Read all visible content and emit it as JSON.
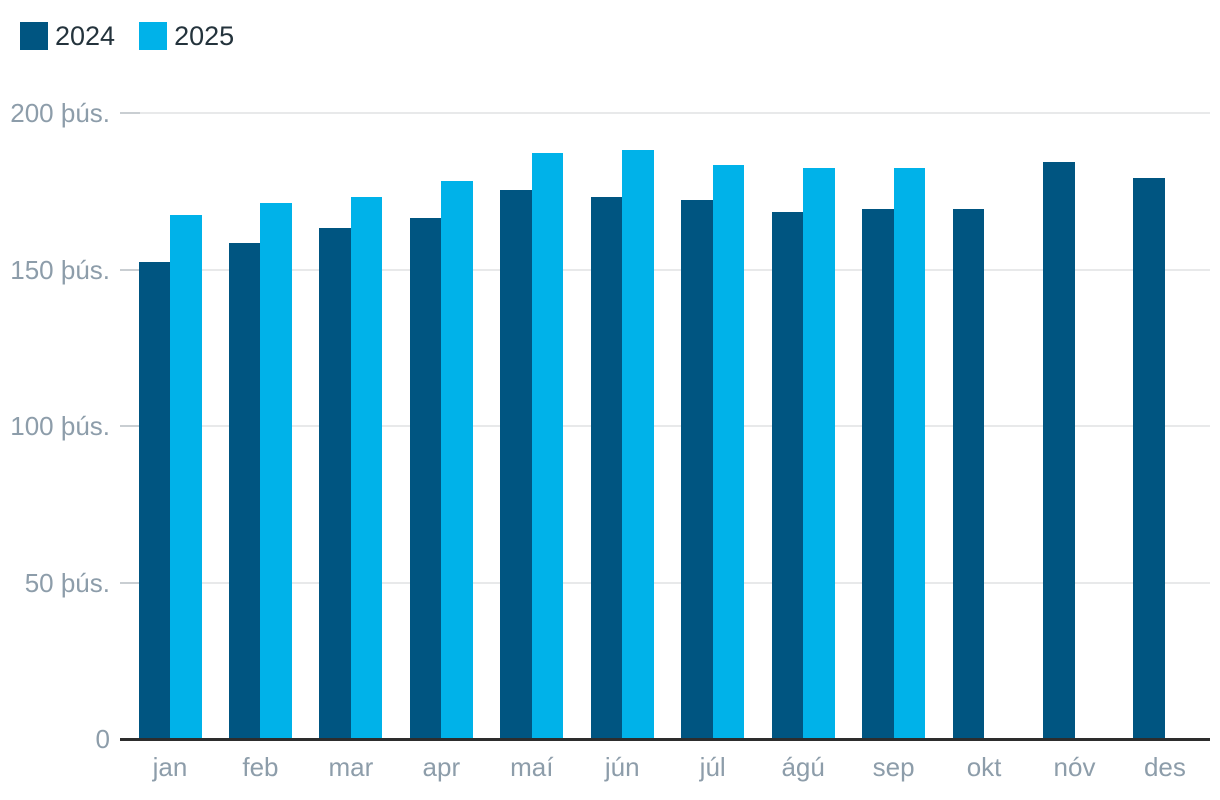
{
  "legend": {
    "items": [
      {
        "label": "2024"
      },
      {
        "label": "2025"
      }
    ]
  },
  "chart_data": {
    "type": "bar",
    "title": "",
    "categories": [
      "jan",
      "feb",
      "mar",
      "apr",
      "maí",
      "jún",
      "júl",
      "ágú",
      "sep",
      "okt",
      "nóv",
      "des"
    ],
    "series": [
      {
        "name": "2024",
        "color": "#005581",
        "values": [
          152,
          158,
          163,
          166,
          175,
          173,
          172,
          168,
          169,
          169,
          184,
          179
        ]
      },
      {
        "name": "2025",
        "color": "#00b2e9",
        "values": [
          167,
          171,
          173,
          178,
          187,
          188,
          183,
          182,
          182,
          null,
          null,
          null
        ]
      }
    ],
    "value_unit": "þús.",
    "y_ticks": [
      {
        "value": 0,
        "label": "0"
      },
      {
        "value": 50,
        "label": "50 þús."
      },
      {
        "value": 100,
        "label": "100 þús."
      },
      {
        "value": 150,
        "label": "150 þús."
      },
      {
        "value": 200,
        "label": "200 þús."
      }
    ],
    "ylim": [
      0,
      200
    ],
    "xlabel": "",
    "ylabel": "",
    "grid": true,
    "legend_position": "top-left",
    "colors": {
      "series_2024": "#005581",
      "series_2025": "#00b2e9",
      "axis_line": "#2d2d2d",
      "gridline": "#e8e9ea",
      "tick": "#c9ced2",
      "axis_label": "#8d9daa",
      "legend_text": "#24333c",
      "background": "#ffffff"
    }
  }
}
